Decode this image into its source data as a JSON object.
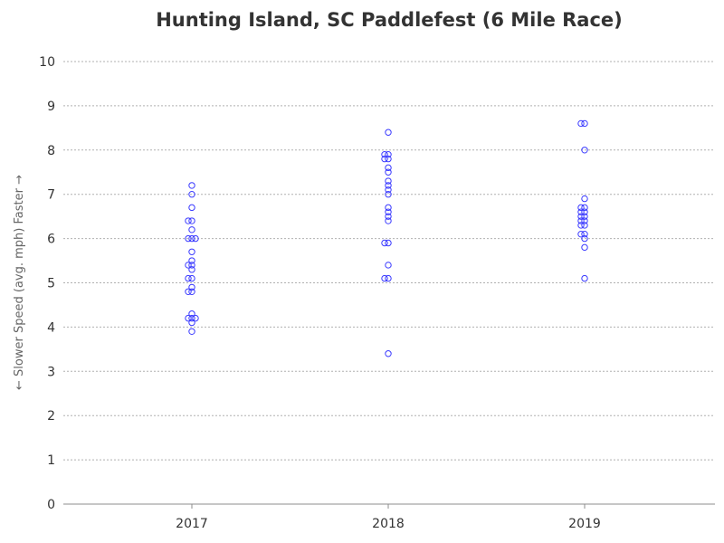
{
  "chart_data": {
    "type": "scatter",
    "title": "Hunting Island, SC Paddlefest (6 Mile Race)",
    "ylabel": "← Slower     Speed (avg. mph)     Faster →",
    "xlabel": "",
    "categories": [
      "2017",
      "2018",
      "2019"
    ],
    "ylim": [
      0,
      10
    ],
    "yticks": [
      "0",
      "1",
      "2",
      "3",
      "4",
      "5",
      "6",
      "7",
      "8",
      "9",
      "10"
    ],
    "grid": true,
    "series": [
      {
        "values": [
          [
            "2017",
            7.2
          ],
          [
            "2017",
            7.0
          ],
          [
            "2017",
            6.7
          ],
          [
            "2017",
            6.4
          ],
          [
            "2017",
            6.4
          ],
          [
            "2017",
            6.2
          ],
          [
            "2017",
            6.0
          ],
          [
            "2017",
            6.0
          ],
          [
            "2017",
            6.0
          ],
          [
            "2017",
            5.7
          ],
          [
            "2017",
            5.5
          ],
          [
            "2017",
            5.4
          ],
          [
            "2017",
            5.4
          ],
          [
            "2017",
            5.3
          ],
          [
            "2017",
            5.1
          ],
          [
            "2017",
            5.1
          ],
          [
            "2017",
            4.9
          ],
          [
            "2017",
            4.8
          ],
          [
            "2017",
            4.8
          ],
          [
            "2017",
            4.3
          ],
          [
            "2017",
            4.2
          ],
          [
            "2017",
            4.2
          ],
          [
            "2017",
            4.2
          ],
          [
            "2017",
            4.1
          ],
          [
            "2017",
            3.9
          ],
          [
            "2018",
            8.4
          ],
          [
            "2018",
            7.9
          ],
          [
            "2018",
            7.9
          ],
          [
            "2018",
            7.8
          ],
          [
            "2018",
            7.8
          ],
          [
            "2018",
            7.6
          ],
          [
            "2018",
            7.5
          ],
          [
            "2018",
            7.3
          ],
          [
            "2018",
            7.2
          ],
          [
            "2018",
            7.1
          ],
          [
            "2018",
            7.0
          ],
          [
            "2018",
            6.7
          ],
          [
            "2018",
            6.6
          ],
          [
            "2018",
            6.5
          ],
          [
            "2018",
            6.4
          ],
          [
            "2018",
            5.9
          ],
          [
            "2018",
            5.9
          ],
          [
            "2018",
            5.4
          ],
          [
            "2018",
            5.1
          ],
          [
            "2018",
            5.1
          ],
          [
            "2018",
            3.4
          ],
          [
            "2019",
            8.6
          ],
          [
            "2019",
            8.6
          ],
          [
            "2019",
            8.0
          ],
          [
            "2019",
            6.9
          ],
          [
            "2019",
            6.7
          ],
          [
            "2019",
            6.7
          ],
          [
            "2019",
            6.6
          ],
          [
            "2019",
            6.6
          ],
          [
            "2019",
            6.5
          ],
          [
            "2019",
            6.5
          ],
          [
            "2019",
            6.4
          ],
          [
            "2019",
            6.4
          ],
          [
            "2019",
            6.3
          ],
          [
            "2019",
            6.3
          ],
          [
            "2019",
            6.1
          ],
          [
            "2019",
            6.1
          ],
          [
            "2019",
            6.0
          ],
          [
            "2019",
            5.8
          ],
          [
            "2019",
            5.1
          ]
        ],
        "color": "#3a3aff"
      }
    ],
    "colors": {
      "marker": "#3a3aff",
      "grid": "#b0b0b0",
      "axis": "#8c8c8c",
      "text": "#333333"
    }
  }
}
